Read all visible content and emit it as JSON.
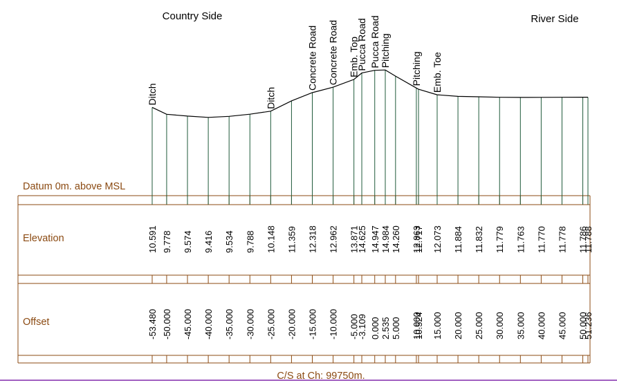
{
  "header": {
    "left_title": "Country Side",
    "right_title": "River Side"
  },
  "datum_label": "Datum 0m. above MSL",
  "row_labels": {
    "elevation": "Elevation",
    "offset": "Offset"
  },
  "footer_caption": "C/S at Ch: 99750m.",
  "colors": {
    "profile": "#000000",
    "station_lines": "#1f5a3a",
    "table_lines": "#8b4a12",
    "label_text": "#8b4a12",
    "footer_rule": "#a05ec0"
  },
  "chart_data": {
    "type": "line",
    "title": "C/S at Ch: 99750m.",
    "x_name": "Offset",
    "y_name": "Elevation",
    "points": [
      {
        "offset": -53.48,
        "offset_text": "-53.480",
        "elevation": 10.591,
        "elevation_text": "10.591",
        "feature": "Ditch"
      },
      {
        "offset": -50.0,
        "offset_text": "-50.000",
        "elevation": 9.778,
        "elevation_text": "9.778",
        "feature": ""
      },
      {
        "offset": -45.0,
        "offset_text": "-45.000",
        "elevation": 9.574,
        "elevation_text": "9.574",
        "feature": ""
      },
      {
        "offset": -40.0,
        "offset_text": "-40.000",
        "elevation": 9.416,
        "elevation_text": "9.416",
        "feature": ""
      },
      {
        "offset": -35.0,
        "offset_text": "-35.000",
        "elevation": 9.534,
        "elevation_text": "9.534",
        "feature": ""
      },
      {
        "offset": -30.0,
        "offset_text": "-30.000",
        "elevation": 9.788,
        "elevation_text": "9.788",
        "feature": ""
      },
      {
        "offset": -25.0,
        "offset_text": "-25.000",
        "elevation": 10.148,
        "elevation_text": "10.148",
        "feature": "Ditch"
      },
      {
        "offset": -20.0,
        "offset_text": "-20.000",
        "elevation": 11.359,
        "elevation_text": "11.359",
        "feature": ""
      },
      {
        "offset": -15.0,
        "offset_text": "-15.000",
        "elevation": 12.318,
        "elevation_text": "12.318",
        "feature": "Concrete Road"
      },
      {
        "offset": -10.0,
        "offset_text": "-10.000",
        "elevation": 12.962,
        "elevation_text": "12.962",
        "feature": "Concrete Road"
      },
      {
        "offset": -5.0,
        "offset_text": "-5.000",
        "elevation": 13.871,
        "elevation_text": "13.871",
        "feature": "Emb. Top"
      },
      {
        "offset": -3.109,
        "offset_text": "-3.109",
        "elevation": 14.625,
        "elevation_text": "14.625",
        "feature": "Pucca Road"
      },
      {
        "offset": 0.0,
        "offset_text": "0.000",
        "elevation": 14.947,
        "elevation_text": "14.947",
        "feature": "Pucca Road"
      },
      {
        "offset": 2.535,
        "offset_text": "2.535",
        "elevation": 14.984,
        "elevation_text": "14.984",
        "feature": "Pitching"
      },
      {
        "offset": 5.0,
        "offset_text": "5.000",
        "elevation": 14.26,
        "elevation_text": "14.260",
        "feature": ""
      },
      {
        "offset": 10.0,
        "offset_text": "10.000",
        "elevation": 12.863,
        "elevation_text": "12.863",
        "feature": "Pitching"
      },
      {
        "offset": 10.524,
        "offset_text": "10.524",
        "elevation": 12.717,
        "elevation_text": "12.717",
        "feature": ""
      },
      {
        "offset": 15.0,
        "offset_text": "15.000",
        "elevation": 12.073,
        "elevation_text": "12.073",
        "feature": "Emb. Toe"
      },
      {
        "offset": 20.0,
        "offset_text": "20.000",
        "elevation": 11.884,
        "elevation_text": "11.884",
        "feature": ""
      },
      {
        "offset": 25.0,
        "offset_text": "25.000",
        "elevation": 11.832,
        "elevation_text": "11.832",
        "feature": ""
      },
      {
        "offset": 30.0,
        "offset_text": "30.000",
        "elevation": 11.779,
        "elevation_text": "11.779",
        "feature": ""
      },
      {
        "offset": 35.0,
        "offset_text": "35.000",
        "elevation": 11.763,
        "elevation_text": "11.763",
        "feature": ""
      },
      {
        "offset": 40.0,
        "offset_text": "40.000",
        "elevation": 11.77,
        "elevation_text": "11.770",
        "feature": ""
      },
      {
        "offset": 45.0,
        "offset_text": "45.000",
        "elevation": 11.778,
        "elevation_text": "11.778",
        "feature": ""
      },
      {
        "offset": 50.0,
        "offset_text": "50.000",
        "elevation": 11.786,
        "elevation_text": "11.786",
        "feature": ""
      },
      {
        "offset": 51.236,
        "offset_text": "51.236",
        "elevation": 11.788,
        "elevation_text": "11.788",
        "feature": ""
      }
    ]
  }
}
